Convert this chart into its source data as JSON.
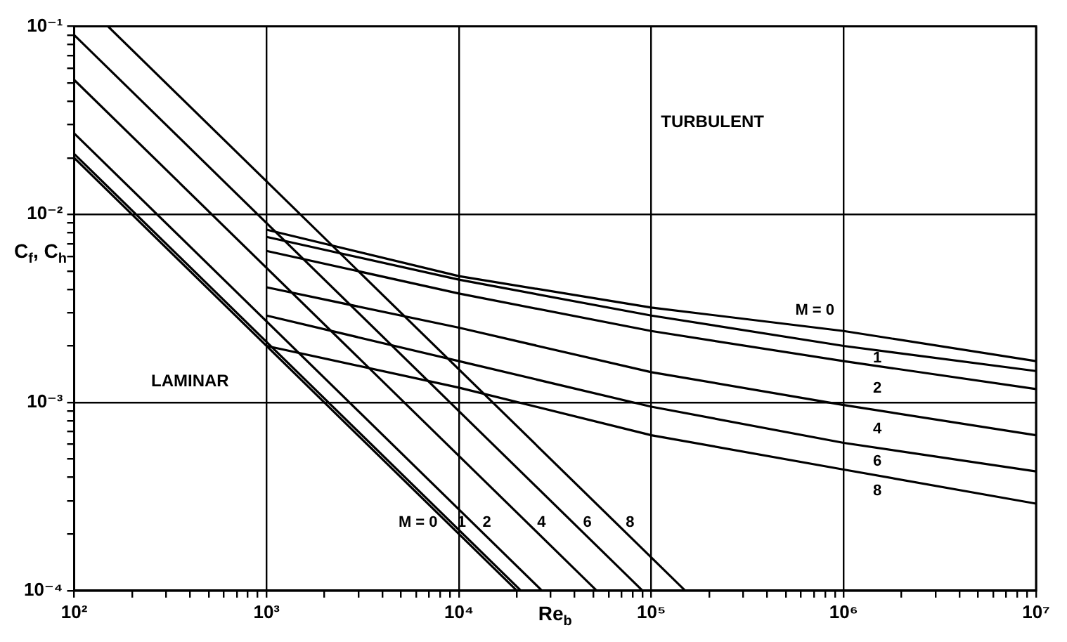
{
  "chart_data": {
    "type": "line",
    "xlabel": "Re$_{b}$",
    "ylabel": "C$_{f}$, C$_{h}$",
    "log": "xy",
    "grid": true,
    "legend": false,
    "marker": "none",
    "line_style": "solid",
    "xlim": [
      100,
      10000000
    ],
    "ylim": [
      0.0001,
      0.1
    ],
    "xticks": [
      {
        "value": 100,
        "label": "10²"
      },
      {
        "value": 200,
        "label": null
      },
      {
        "value": 300,
        "label": null
      },
      {
        "value": 400,
        "label": null
      },
      {
        "value": 500,
        "label": null
      },
      {
        "value": 600,
        "label": null
      },
      {
        "value": 700,
        "label": null
      },
      {
        "value": 800,
        "label": null
      },
      {
        "value": 900,
        "label": null
      },
      {
        "value": 1000,
        "label": "10³"
      },
      {
        "value": 2000,
        "label": null
      },
      {
        "value": 3000,
        "label": null
      },
      {
        "value": 4000,
        "label": null
      },
      {
        "value": 5000,
        "label": null
      },
      {
        "value": 6000,
        "label": null
      },
      {
        "value": 7000,
        "label": null
      },
      {
        "value": 8000,
        "label": null
      },
      {
        "value": 9000,
        "label": null
      },
      {
        "value": 10000,
        "label": "10⁴"
      },
      {
        "value": 20000,
        "label": null
      },
      {
        "value": 30000,
        "label": null
      },
      {
        "value": 40000,
        "label": null
      },
      {
        "value": 50000,
        "label": null
      },
      {
        "value": 60000,
        "label": null
      },
      {
        "value": 70000,
        "label": null
      },
      {
        "value": 80000,
        "label": null
      },
      {
        "value": 90000,
        "label": null
      },
      {
        "value": 100000,
        "label": "10⁵"
      },
      {
        "value": 200000,
        "label": null
      },
      {
        "value": 300000,
        "label": null
      },
      {
        "value": 400000,
        "label": null
      },
      {
        "value": 500000,
        "label": null
      },
      {
        "value": 600000,
        "label": null
      },
      {
        "value": 700000,
        "label": null
      },
      {
        "value": 800000,
        "label": null
      },
      {
        "value": 900000,
        "label": null
      },
      {
        "value": 1000000,
        "label": "10⁶"
      },
      {
        "value": 2000000,
        "label": null
      },
      {
        "value": 3000000,
        "label": null
      },
      {
        "value": 4000000,
        "label": null
      },
      {
        "value": 5000000,
        "label": null
      },
      {
        "value": 6000000,
        "label": null
      },
      {
        "value": 7000000,
        "label": null
      },
      {
        "value": 8000000,
        "label": null
      },
      {
        "value": 9000000,
        "label": null
      },
      {
        "value": 10000000,
        "label": "10⁷"
      }
    ],
    "yticks": [
      {
        "value": 0.0001,
        "label": "10⁻⁴"
      },
      {
        "value": 0.0002,
        "label": null
      },
      {
        "value": 0.0003,
        "label": null
      },
      {
        "value": 0.0004,
        "label": null
      },
      {
        "value": 0.0005,
        "label": null
      },
      {
        "value": 0.0006,
        "label": null
      },
      {
        "value": 0.0007,
        "label": null
      },
      {
        "value": 0.0008,
        "label": null
      },
      {
        "value": 0.0009,
        "label": null
      },
      {
        "value": 0.001,
        "label": "10⁻³"
      },
      {
        "value": 0.002,
        "label": null
      },
      {
        "value": 0.003,
        "label": null
      },
      {
        "value": 0.004,
        "label": null
      },
      {
        "value": 0.005,
        "label": null
      },
      {
        "value": 0.006,
        "label": null
      },
      {
        "value": 0.007,
        "label": null
      },
      {
        "value": 0.008,
        "label": null
      },
      {
        "value": 0.009,
        "label": null
      },
      {
        "value": 0.01,
        "label": "10⁻²"
      },
      {
        "value": 0.02,
        "label": null
      },
      {
        "value": 0.03,
        "label": null
      },
      {
        "value": 0.04,
        "label": null
      },
      {
        "value": 0.05,
        "label": null
      },
      {
        "value": 0.06,
        "label": null
      },
      {
        "value": 0.07,
        "label": null
      },
      {
        "value": 0.08,
        "label": null
      },
      {
        "value": 0.09,
        "label": null
      },
      {
        "value": 0.1,
        "label": "10⁻¹"
      }
    ],
    "series": [
      {
        "name": "M = 0",
        "color": "#000000",
        "x": [
          100,
          21000
        ],
        "values": [
          0.021,
          0.0001
        ]
      },
      {
        "name": "1",
        "color": "#000000",
        "x": [
          100,
          20000
        ],
        "values": [
          0.02,
          0.0001
        ]
      },
      {
        "name": "2",
        "color": "#000000",
        "x": [
          100,
          27000
        ],
        "values": [
          0.027,
          0.0001
        ]
      },
      {
        "name": "4",
        "color": "#000000",
        "x": [
          100,
          52000
        ],
        "values": [
          0.052,
          0.0001
        ]
      },
      {
        "name": "6",
        "color": "#000000",
        "x": [
          100,
          90000
        ],
        "values": [
          0.09,
          0.0001
        ]
      },
      {
        "name": "8",
        "color": "#000000",
        "x": [
          150,
          150000
        ],
        "values": [
          0.1,
          0.0001
        ]
      },
      {
        "name": "M = 0",
        "color": "#000000",
        "x": [
          1000,
          10000,
          100000,
          1000000,
          10000000
        ],
        "values": [
          0.0083,
          0.0047,
          0.0032,
          0.0024,
          0.00166
        ]
      },
      {
        "name": "1",
        "color": "#000000",
        "x": [
          1000,
          10000,
          100000,
          1000000,
          10000000
        ],
        "values": [
          0.0076,
          0.0045,
          0.0029,
          0.002,
          0.00147
        ]
      },
      {
        "name": "2",
        "color": "#000000",
        "x": [
          1000,
          10000,
          100000,
          1000000,
          10000000
        ],
        "values": [
          0.0064,
          0.0038,
          0.0024,
          0.00166,
          0.00118
        ]
      },
      {
        "name": "4",
        "color": "#000000",
        "x": [
          1000,
          10000,
          100000,
          1000000,
          10000000
        ],
        "values": [
          0.0041,
          0.0025,
          0.00145,
          0.00097,
          0.00067
        ]
      },
      {
        "name": "6",
        "color": "#000000",
        "x": [
          1000,
          10000,
          100000,
          1000000,
          10000000
        ],
        "values": [
          0.0029,
          0.00166,
          0.00095,
          0.00061,
          0.00043
        ]
      },
      {
        "name": "8",
        "color": "#000000",
        "x": [
          1000,
          10000,
          100000,
          1000000,
          10000000
        ],
        "values": [
          0.002,
          0.0012,
          0.00067,
          0.00044,
          0.00029
        ]
      }
    ],
    "annotations": [
      "TURBULENT",
      "LAMINAR"
    ]
  }
}
